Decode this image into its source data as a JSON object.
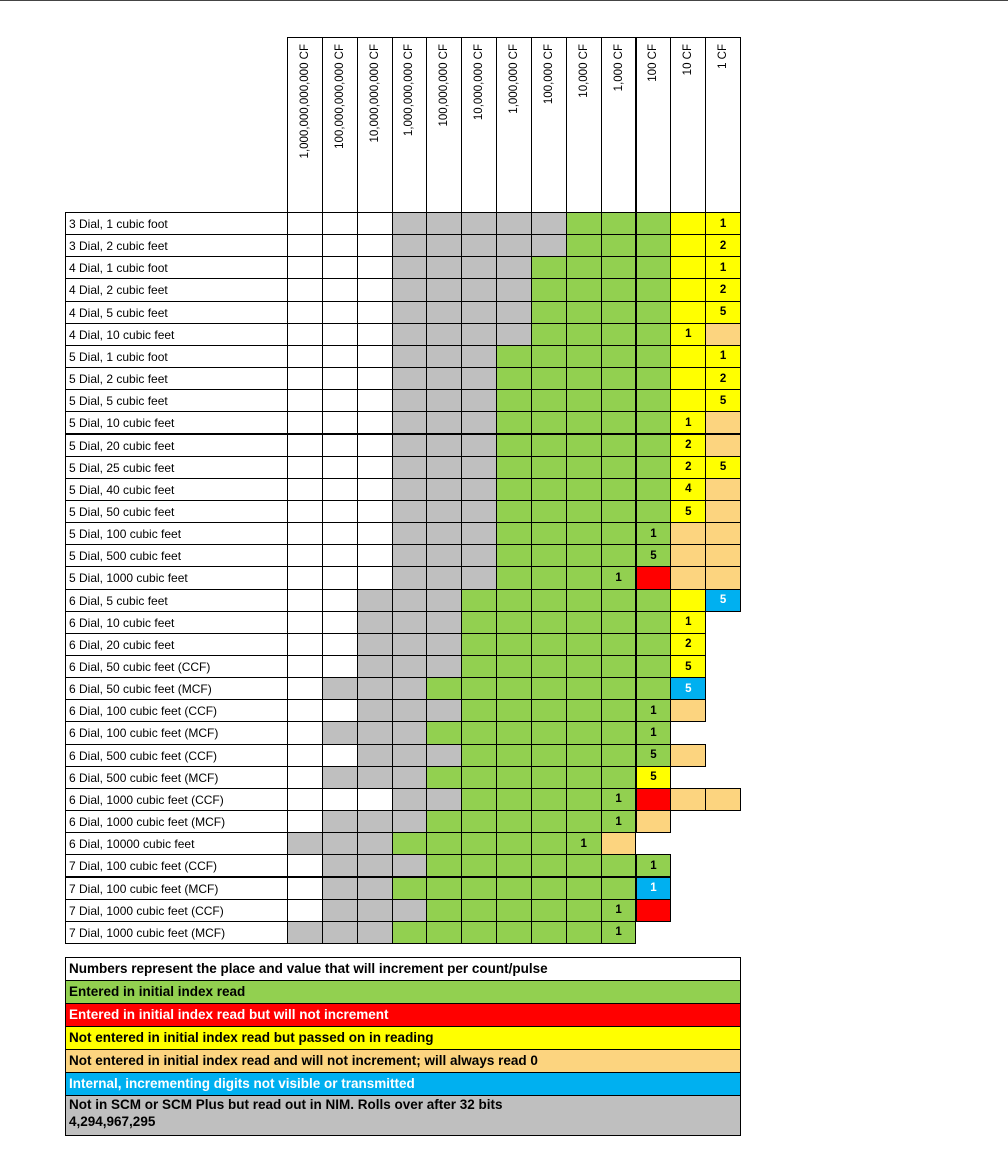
{
  "header": {
    "columns": [
      "1,000,000,000,000 CF",
      "100,000,000,000 CF",
      "10,000,000,000 CF",
      "1,000,000,000 CF",
      "100,000,000 CF",
      "10,000,000 CF",
      "1,000,000 CF",
      "100,000 CF",
      "10,000 CF",
      "1,000 CF",
      "100 CF",
      "10 CF",
      "1 CF"
    ]
  },
  "palette": {
    "W": "#ffffff",
    "S": "#bfbfbf",
    "G": "#92d050",
    "Y": "#ffff00",
    "O": "#fcd47f",
    "R": "#ff0000",
    "B": "#00b0f0"
  },
  "table": {
    "rows": [
      {
        "label": "3 Dial, 1 cubic foot",
        "cells": [
          "W",
          "W",
          "W",
          "S",
          "S",
          "S",
          "S",
          "S",
          "G",
          "G",
          "G",
          "Y",
          {
            "color": "Y",
            "text": "1"
          }
        ]
      },
      {
        "label": "3 Dial, 2 cubic feet",
        "cells": [
          "W",
          "W",
          "W",
          "S",
          "S",
          "S",
          "S",
          "S",
          "G",
          "G",
          "G",
          "Y",
          {
            "color": "Y",
            "text": "2"
          }
        ]
      },
      {
        "label": "4 Dial, 1 cubic foot",
        "cells": [
          "W",
          "W",
          "W",
          "S",
          "S",
          "S",
          "S",
          "G",
          "G",
          "G",
          "G",
          "Y",
          {
            "color": "Y",
            "text": "1"
          }
        ]
      },
      {
        "label": "4 Dial, 2 cubic feet",
        "cells": [
          "W",
          "W",
          "W",
          "S",
          "S",
          "S",
          "S",
          "G",
          "G",
          "G",
          "G",
          "Y",
          {
            "color": "Y",
            "text": "2"
          }
        ]
      },
      {
        "label": "4 Dial, 5 cubic feet",
        "cells": [
          "W",
          "W",
          "W",
          "S",
          "S",
          "S",
          "S",
          "G",
          "G",
          "G",
          "G",
          "Y",
          {
            "color": "Y",
            "text": "5"
          }
        ]
      },
      {
        "label": "4 Dial, 10 cubic feet",
        "cells": [
          "W",
          "W",
          "W",
          "S",
          "S",
          "S",
          "S",
          "G",
          "G",
          "G",
          "G",
          {
            "color": "Y",
            "text": "1"
          },
          "O"
        ]
      },
      {
        "label": "5 Dial, 1 cubic foot",
        "cells": [
          "W",
          "W",
          "W",
          "S",
          "S",
          "S",
          "G",
          "G",
          "G",
          "G",
          "G",
          "Y",
          {
            "color": "Y",
            "text": "1"
          }
        ]
      },
      {
        "label": "5 Dial, 2 cubic feet",
        "cells": [
          "W",
          "W",
          "W",
          "S",
          "S",
          "S",
          "G",
          "G",
          "G",
          "G",
          "G",
          "Y",
          {
            "color": "Y",
            "text": "2"
          }
        ]
      },
      {
        "label": "5 Dial, 5 cubic feet",
        "cells": [
          "W",
          "W",
          "W",
          "S",
          "S",
          "S",
          "G",
          "G",
          "G",
          "G",
          "G",
          "Y",
          {
            "color": "Y",
            "text": "5"
          }
        ]
      },
      {
        "label": "5 Dial, 10 cubic feet",
        "cells": [
          "W",
          "W",
          "W",
          "S",
          "S",
          "S",
          "G",
          "G",
          "G",
          "G",
          "G",
          {
            "color": "Y",
            "text": "1"
          },
          "O"
        ]
      },
      {
        "label": "5 Dial, 20 cubic feet",
        "cells": [
          "W",
          "W",
          "W",
          "S",
          "S",
          "S",
          "G",
          "G",
          "G",
          "G",
          "G",
          {
            "color": "Y",
            "text": "2"
          },
          "O"
        ]
      },
      {
        "label": "5 Dial, 25 cubic feet",
        "cells": [
          "W",
          "W",
          "W",
          "S",
          "S",
          "S",
          "G",
          "G",
          "G",
          "G",
          "G",
          {
            "color": "Y",
            "text": "2"
          },
          {
            "color": "Y",
            "text": "5"
          }
        ]
      },
      {
        "label": "5 Dial, 40 cubic feet",
        "cells": [
          "W",
          "W",
          "W",
          "S",
          "S",
          "S",
          "G",
          "G",
          "G",
          "G",
          "G",
          {
            "color": "Y",
            "text": "4"
          },
          "O"
        ]
      },
      {
        "label": "5 Dial, 50 cubic feet",
        "cells": [
          "W",
          "W",
          "W",
          "S",
          "S",
          "S",
          "G",
          "G",
          "G",
          "G",
          "G",
          {
            "color": "Y",
            "text": "5"
          },
          "O"
        ]
      },
      {
        "label": "5 Dial, 100 cubic feet",
        "cells": [
          "W",
          "W",
          "W",
          "S",
          "S",
          "S",
          "G",
          "G",
          "G",
          "G",
          {
            "color": "G",
            "text": "1"
          },
          "O",
          "O"
        ]
      },
      {
        "label": "5 Dial, 500 cubic feet",
        "cells": [
          "W",
          "W",
          "W",
          "S",
          "S",
          "S",
          "G",
          "G",
          "G",
          "G",
          {
            "color": "G",
            "text": "5"
          },
          "O",
          "O"
        ]
      },
      {
        "label": "5 Dial, 1000 cubic feet",
        "cells": [
          "W",
          "W",
          "W",
          "S",
          "S",
          "S",
          "G",
          "G",
          "G",
          {
            "color": "G",
            "text": "1"
          },
          "R",
          "O",
          "O"
        ]
      },
      {
        "label": "6 Dial, 5 cubic feet",
        "cells": [
          "W",
          "W",
          "S",
          "S",
          "S",
          "G",
          "G",
          "G",
          "G",
          "G",
          "G",
          "Y",
          {
            "color": "B",
            "text": "5"
          }
        ]
      },
      {
        "label": "6 Dial, 10 cubic feet",
        "cells": [
          "W",
          "W",
          "S",
          "S",
          "S",
          "G",
          "G",
          "G",
          "G",
          "G",
          "G",
          {
            "color": "Y",
            "text": "1"
          },
          "-"
        ]
      },
      {
        "label": "6 Dial, 20 cubic feet",
        "cells": [
          "W",
          "W",
          "S",
          "S",
          "S",
          "G",
          "G",
          "G",
          "G",
          "G",
          "G",
          {
            "color": "Y",
            "text": "2"
          },
          "-"
        ]
      },
      {
        "label": "6 Dial, 50 cubic feet (CCF)",
        "cells": [
          "W",
          "W",
          "S",
          "S",
          "S",
          "G",
          "G",
          "G",
          "G",
          "G",
          "G",
          {
            "color": "Y",
            "text": "5"
          },
          "-"
        ]
      },
      {
        "label": "6 Dial, 50 cubic feet (MCF)",
        "cells": [
          "W",
          "S",
          "S",
          "S",
          "G",
          "G",
          "G",
          "G",
          "G",
          "G",
          "G",
          {
            "color": "B",
            "text": "5"
          },
          "-"
        ]
      },
      {
        "label": "6 Dial, 100 cubic feet (CCF)",
        "cells": [
          "W",
          "W",
          "S",
          "S",
          "S",
          "G",
          "G",
          "G",
          "G",
          "G",
          {
            "color": "G",
            "text": "1"
          },
          "O",
          "-"
        ]
      },
      {
        "label": "6 Dial, 100 cubic feet (MCF)",
        "cells": [
          "W",
          "S",
          "S",
          "S",
          "G",
          "G",
          "G",
          "G",
          "G",
          "G",
          {
            "color": "G",
            "text": "1"
          },
          "-",
          "-"
        ]
      },
      {
        "label": "6 Dial, 500 cubic feet (CCF)",
        "cells": [
          "W",
          "W",
          "S",
          "S",
          "S",
          "G",
          "G",
          "G",
          "G",
          "G",
          {
            "color": "G",
            "text": "5"
          },
          "O",
          "-"
        ]
      },
      {
        "label": "6 Dial, 500 cubic feet (MCF)",
        "cells": [
          "W",
          "S",
          "S",
          "S",
          "G",
          "G",
          "G",
          "G",
          "G",
          "G",
          {
            "color": "Y",
            "text": "5"
          },
          "-",
          "-"
        ]
      },
      {
        "label": "6 Dial, 1000 cubic feet (CCF)",
        "cells": [
          "W",
          "W",
          "W",
          "S",
          "S",
          "G",
          "G",
          "G",
          "G",
          {
            "color": "G",
            "text": "1"
          },
          "R",
          "O",
          "O"
        ]
      },
      {
        "label": "6 Dial, 1000 cubic feet (MCF)",
        "cells": [
          "W",
          "S",
          "S",
          "S",
          "G",
          "G",
          "G",
          "G",
          "G",
          {
            "color": "G",
            "text": "1"
          },
          "O",
          "-",
          "-"
        ]
      },
      {
        "label": "6 Dial, 10000 cubic feet",
        "cells": [
          "S",
          "S",
          "S",
          "G",
          "G",
          "G",
          "G",
          "G",
          {
            "color": "G",
            "text": "1"
          },
          "O",
          "-",
          "-",
          "-"
        ]
      },
      {
        "label": "7 Dial, 100 cubic feet (CCF)",
        "cells": [
          "W",
          "S",
          "S",
          "S",
          "G",
          "G",
          "G",
          "G",
          "G",
          "G",
          {
            "color": "G",
            "text": "1"
          },
          "-",
          "-"
        ]
      },
      {
        "label": "7 Dial, 100 cubic feet (MCF)",
        "cells": [
          "W",
          "S",
          "S",
          "G",
          "G",
          "G",
          "G",
          "G",
          "G",
          "G",
          {
            "color": "B",
            "text": "1"
          },
          "-",
          "-"
        ]
      },
      {
        "label": "7 Dial, 1000 cubic feet (CCF)",
        "cells": [
          "W",
          "S",
          "S",
          "S",
          "G",
          "G",
          "G",
          "G",
          "G",
          {
            "color": "G",
            "text": "1"
          },
          "R",
          "-",
          "-"
        ]
      },
      {
        "label": "7 Dial, 1000 cubic feet (MCF)",
        "cells": [
          "S",
          "S",
          "S",
          "G",
          "G",
          "G",
          "G",
          "G",
          "G",
          {
            "color": "G",
            "text": "1"
          },
          "-",
          "-",
          "-"
        ]
      }
    ]
  },
  "legend": [
    {
      "color": "W",
      "text": "Numbers represent the place and value that will increment per count/pulse"
    },
    {
      "color": "G",
      "text": "Entered in initial index read"
    },
    {
      "color": "R",
      "text": "Entered in initial index read but will not increment",
      "light": true
    },
    {
      "color": "Y",
      "text": "Not entered in initial index read but passed on in reading"
    },
    {
      "color": "O",
      "text": "Not entered in initial index read and will not increment; will always read 0"
    },
    {
      "color": "B",
      "text": "Internal, incrementing digits not visible or transmitted",
      "light": true
    },
    {
      "color": "S",
      "text": "Not in SCM or SCM Plus but read out in NIM. Rolls over after 32 bits",
      "text2": "4,294,967,295"
    }
  ]
}
